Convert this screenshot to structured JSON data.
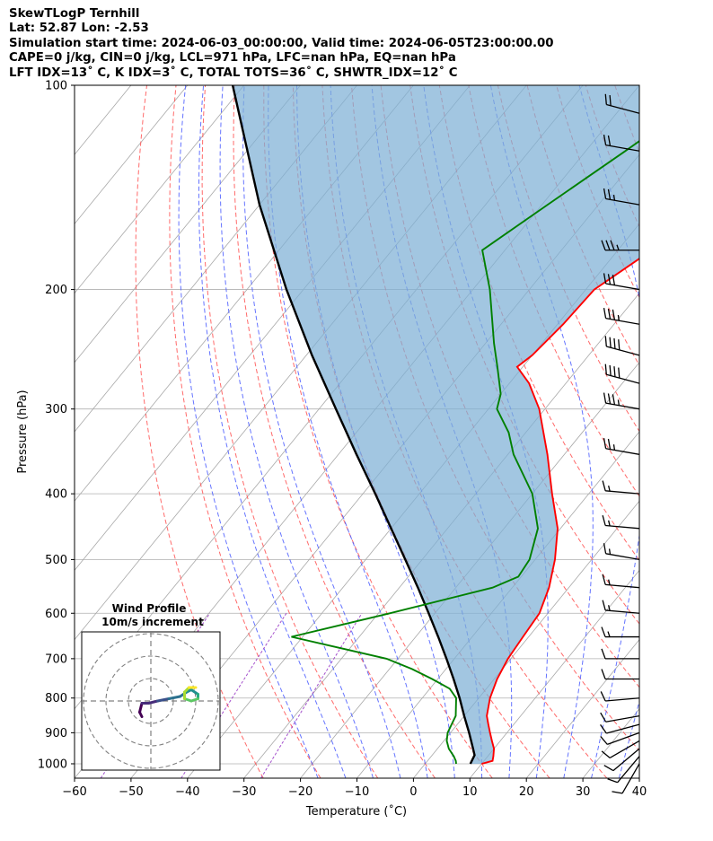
{
  "header": {
    "line1": "SkewTLogP Ternhill",
    "line2": "Lat: 52.87   Lon: -2.53",
    "line3": "Simulation start time: 2024-06-03_00:00:00, Valid time: 2024-06-05T23:00:00.00",
    "line4": "CAPE=0 j/kg, CIN=0 j/kg, LCL=971 hPa, LFC=nan hPa, EQ=nan hPa",
    "line5": "LFT IDX=13˚ C, K IDX=3˚ C, TOTAL TOTS=36˚ C, SHWTR_IDX=12˚ C"
  },
  "chart_data": {
    "type": "line",
    "xlabel": "Temperature (˚C)",
    "ylabel": "Pressure (hPa)",
    "xlim": [
      -60,
      40
    ],
    "ylim": [
      1050,
      100
    ],
    "yscale": "log",
    "grid": true,
    "xticks": [
      "−60",
      "−50",
      "−40",
      "−30",
      "−20",
      "−10",
      "0",
      "10",
      "20",
      "30",
      "40"
    ],
    "yticks": [
      "100",
      "200",
      "300",
      "400",
      "500",
      "600",
      "700",
      "800",
      "900",
      "1000"
    ],
    "series": [
      {
        "role": "temperature",
        "color": "#ff0000",
        "points": [
          [
            1000,
            10.0
          ],
          [
            990,
            11.5
          ],
          [
            975,
            11.0
          ],
          [
            950,
            10.0
          ],
          [
            925,
            8.5
          ],
          [
            900,
            7.0
          ],
          [
            875,
            5.5
          ],
          [
            850,
            4.0
          ],
          [
            800,
            2.0
          ],
          [
            750,
            0.5
          ],
          [
            725,
            0.0
          ],
          [
            700,
            -0.5
          ],
          [
            650,
            -1.0
          ],
          [
            600,
            -1.5
          ],
          [
            550,
            -3.5
          ],
          [
            500,
            -6.5
          ],
          [
            450,
            -10.5
          ],
          [
            400,
            -16.5
          ],
          [
            350,
            -23.0
          ],
          [
            300,
            -31.0
          ],
          [
            275,
            -36.5
          ],
          [
            260,
            -41.0
          ],
          [
            250,
            -40.0
          ],
          [
            225,
            -39.0
          ],
          [
            200,
            -38.5
          ],
          [
            175,
            -34.0
          ],
          [
            150,
            -31.5
          ],
          [
            125,
            -33.0
          ],
          [
            115,
            -34.5
          ],
          [
            100,
            -38.0
          ]
        ]
      },
      {
        "role": "dewpoint",
        "color": "#008000",
        "points": [
          [
            1000,
            5.5
          ],
          [
            990,
            5.0
          ],
          [
            975,
            4.0
          ],
          [
            950,
            2.0
          ],
          [
            925,
            0.5
          ],
          [
            900,
            -0.5
          ],
          [
            875,
            -1.0
          ],
          [
            850,
            -1.5
          ],
          [
            800,
            -4.0
          ],
          [
            775,
            -6.5
          ],
          [
            750,
            -11.0
          ],
          [
            725,
            -16.0
          ],
          [
            700,
            -22.0
          ],
          [
            650,
            -42.0
          ],
          [
            600,
            -28.0
          ],
          [
            550,
            -13.5
          ],
          [
            530,
            -10.5
          ],
          [
            500,
            -11.0
          ],
          [
            450,
            -14.0
          ],
          [
            400,
            -20.0
          ],
          [
            350,
            -29.0
          ],
          [
            325,
            -33.0
          ],
          [
            300,
            -38.5
          ],
          [
            285,
            -40.0
          ],
          [
            260,
            -44.5
          ],
          [
            240,
            -48.5
          ],
          [
            200,
            -57.0
          ],
          [
            175,
            -64.0
          ],
          [
            150,
            -59.0
          ],
          [
            125,
            -53.0
          ],
          [
            100,
            -46.0
          ]
        ]
      },
      {
        "role": "parcel",
        "color": "#000000",
        "points": [
          [
            1000,
            8.0
          ],
          [
            971,
            7.5
          ],
          [
            950,
            6.3
          ],
          [
            900,
            3.3
          ],
          [
            850,
            0.0
          ],
          [
            800,
            -3.4
          ],
          [
            750,
            -7.2
          ],
          [
            700,
            -11.4
          ],
          [
            650,
            -16.0
          ],
          [
            600,
            -21.1
          ],
          [
            550,
            -26.7
          ],
          [
            500,
            -33.0
          ],
          [
            450,
            -40.0
          ],
          [
            400,
            -47.8
          ],
          [
            350,
            -56.8
          ],
          [
            300,
            -67.0
          ],
          [
            250,
            -79.0
          ],
          [
            200,
            -93.0
          ],
          [
            150,
            -110.0
          ],
          [
            100,
            -132.0
          ]
        ]
      }
    ],
    "wind_barbs": {
      "pressures": [
        1000,
        975,
        950,
        925,
        900,
        875,
        850,
        800,
        750,
        700,
        650,
        600,
        550,
        500,
        450,
        400,
        350,
        300,
        275,
        250,
        225,
        200,
        175,
        150,
        125,
        110
      ],
      "speeds_kt": [
        10,
        10,
        10,
        10,
        10,
        10,
        10,
        10,
        10,
        10,
        15,
        15,
        15,
        15,
        15,
        15,
        25,
        35,
        40,
        40,
        35,
        30,
        35,
        25,
        20,
        20
      ],
      "directions_deg": [
        210,
        220,
        230,
        240,
        250,
        255,
        260,
        265,
        270,
        270,
        270,
        275,
        275,
        280,
        275,
        275,
        280,
        280,
        285,
        285,
        280,
        280,
        270,
        280,
        280,
        285
      ]
    },
    "hodograph": {
      "title": "Wind Profile",
      "subtitle": "10m/s increment",
      "points": [
        [
          -4,
          -7
        ],
        [
          -5,
          -5
        ],
        [
          -4,
          -1
        ],
        [
          -1,
          -1
        ],
        [
          3,
          0
        ],
        [
          8,
          1
        ],
        [
          13,
          2
        ],
        [
          16,
          4
        ],
        [
          18,
          5
        ],
        [
          21,
          3
        ],
        [
          21,
          1
        ],
        [
          18,
          0
        ],
        [
          15,
          1
        ],
        [
          15,
          4
        ],
        [
          17,
          6
        ],
        [
          20,
          6
        ]
      ]
    }
  }
}
